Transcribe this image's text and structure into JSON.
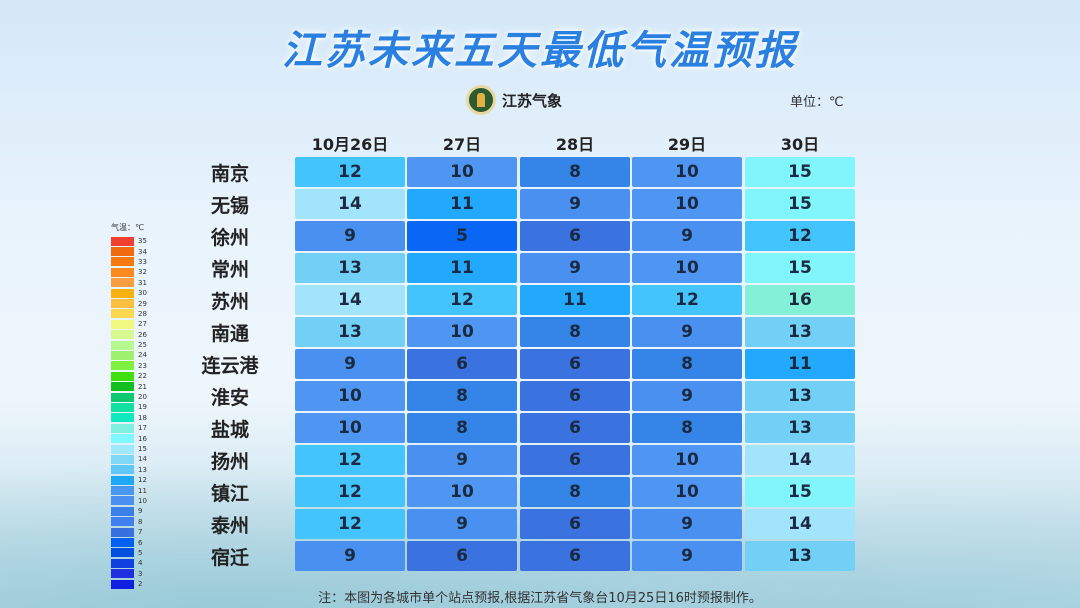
{
  "title": "江苏未来五天最低气温预报",
  "logo_text": "江苏气象",
  "unit": "单位：℃",
  "dates": [
    "10月26日",
    "27日",
    "28日",
    "29日",
    "30日"
  ],
  "cities": [
    "南京",
    "无锡",
    "徐州",
    "常州",
    "苏州",
    "南通",
    "连云港",
    "淮安",
    "盐城",
    "扬州",
    "镇江",
    "泰州",
    "宿迁"
  ],
  "values": [
    [
      12,
      10,
      8,
      10,
      15
    ],
    [
      14,
      11,
      9,
      10,
      15
    ],
    [
      9,
      5,
      6,
      9,
      12
    ],
    [
      13,
      11,
      9,
      10,
      15
    ],
    [
      14,
      12,
      11,
      12,
      16
    ],
    [
      13,
      10,
      8,
      9,
      13
    ],
    [
      9,
      6,
      6,
      8,
      11
    ],
    [
      10,
      8,
      6,
      9,
      13
    ],
    [
      10,
      8,
      6,
      8,
      13
    ],
    [
      12,
      9,
      6,
      10,
      14
    ],
    [
      12,
      10,
      8,
      10,
      15
    ],
    [
      12,
      9,
      6,
      9,
      14
    ],
    [
      9,
      6,
      6,
      9,
      13
    ]
  ],
  "cell_colors": {
    "5": "#0a66f5",
    "6": "#3a72e0",
    "8": "#3584e8",
    "9": "#4a90f0",
    "10": "#4f96f2",
    "11": "#22a8fc",
    "12": "#44c4fc",
    "13": "#72cff6",
    "14": "#a2e4fc",
    "15": "#80f6fc",
    "16": "#84f0d8"
  },
  "legend": {
    "title": "气温：℃",
    "items": [
      {
        "v": "35",
        "c": "#f04030"
      },
      {
        "v": "34",
        "c": "#f06a10"
      },
      {
        "v": "33",
        "c": "#f77a10"
      },
      {
        "v": "32",
        "c": "#f88a20"
      },
      {
        "v": "31",
        "c": "#fa9d40"
      },
      {
        "v": "30",
        "c": "#f8b010"
      },
      {
        "v": "29",
        "c": "#fcc040"
      },
      {
        "v": "28",
        "c": "#fcd850"
      },
      {
        "v": "27",
        "c": "#f0f880"
      },
      {
        "v": "26",
        "c": "#d8f890"
      },
      {
        "v": "25",
        "c": "#b8f890"
      },
      {
        "v": "24",
        "c": "#a0f070"
      },
      {
        "v": "23",
        "c": "#80f040"
      },
      {
        "v": "22",
        "c": "#40e010"
      },
      {
        "v": "21",
        "c": "#10c020"
      },
      {
        "v": "20",
        "c": "#10c870"
      },
      {
        "v": "19",
        "c": "#10e0a0"
      },
      {
        "v": "18",
        "c": "#10e8c0"
      },
      {
        "v": "17",
        "c": "#80f0e0"
      },
      {
        "v": "16",
        "c": "#80f8ff"
      },
      {
        "v": "15",
        "c": "#a0e8ff"
      },
      {
        "v": "14",
        "c": "#80d8f8"
      },
      {
        "v": "13",
        "c": "#60c8f8"
      },
      {
        "v": "12",
        "c": "#20a8f8"
      },
      {
        "v": "11",
        "c": "#4898f0"
      },
      {
        "v": "10",
        "c": "#4a90f0"
      },
      {
        "v": "9",
        "c": "#3a80e8"
      },
      {
        "v": "8",
        "c": "#4080f0"
      },
      {
        "v": "7",
        "c": "#3870e0"
      },
      {
        "v": "6",
        "c": "#0060f0"
      },
      {
        "v": "5",
        "c": "#0050e0"
      },
      {
        "v": "4",
        "c": "#1040e0"
      },
      {
        "v": "3",
        "c": "#2030e0"
      },
      {
        "v": "2",
        "c": "#1020e0"
      }
    ]
  },
  "note": "注：本图为各城市单个站点预报,根据江苏省气象台10月25日16时预报制作。"
}
